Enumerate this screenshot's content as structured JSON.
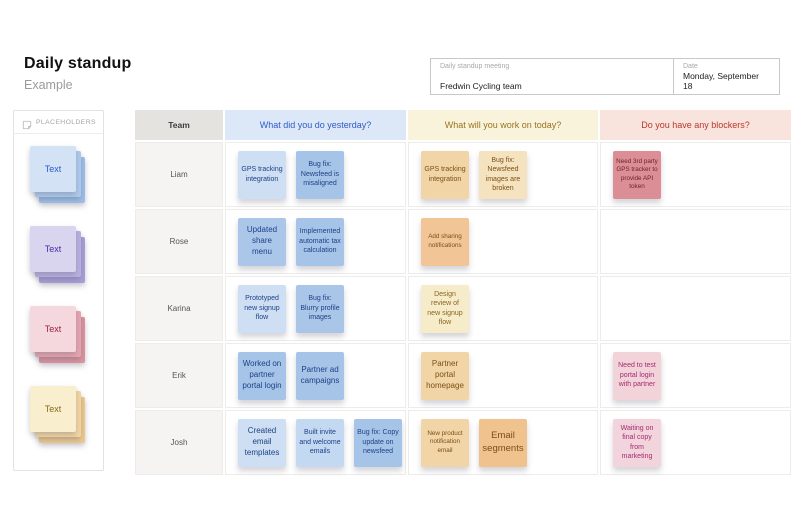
{
  "page": {
    "title": "Daily standup",
    "subtitle": "Example"
  },
  "meeting_form": {
    "name_label": "Daily standup meeting",
    "name_value": "Fredwin Cycling team",
    "date_label": "Date",
    "date_value": "Monday, September 18"
  },
  "sidebar": {
    "title": "PLACEHOLDERS",
    "icon": "sticky-note-icon",
    "stacks": [
      {
        "label": "Text",
        "color": "blue",
        "front": "#d4e2f6",
        "mid": "#aecbee",
        "back": "#9dc0ea",
        "fg": "#2d5bc7"
      },
      {
        "label": "Text",
        "color": "purple",
        "front": "#d9d5ef",
        "mid": "#b9b0e0",
        "back": "#a99ed9",
        "fg": "#5128a8"
      },
      {
        "label": "Text",
        "color": "pink",
        "front": "#f5d8dd",
        "mid": "#e5a6af",
        "back": "#dd939f",
        "fg": "#a01f48"
      },
      {
        "label": "Text",
        "color": "yellow",
        "front": "#f9efce",
        "mid": "#f3d7a3",
        "back": "#efca8c",
        "fg": "#8a6a1c"
      }
    ]
  },
  "table": {
    "columns": [
      {
        "key": "team",
        "label": "Team",
        "bg": "#e4e3e0",
        "fg": "#3c3c3c"
      },
      {
        "key": "yesterday",
        "label": "What did you do yesterday?",
        "bg": "#dce8f7",
        "fg": "#2f5bc7"
      },
      {
        "key": "today",
        "label": "What will you work on today?",
        "bg": "#faf3dc",
        "fg": "#97741f"
      },
      {
        "key": "blockers",
        "label": "Do you have any blockers?",
        "bg": "#f8e3dd",
        "fg": "#b8392c"
      }
    ],
    "rows": [
      {
        "name": "Liam",
        "yesterday": [
          {
            "text": "GPS tracking integration",
            "bg": "#cfdff3",
            "fg": "#1d4186",
            "size": "s"
          },
          {
            "text": "Bug fix: Newsfeed is misaligned",
            "bg": "#a6c4e8",
            "fg": "#1d4186",
            "size": "s"
          }
        ],
        "today": [
          {
            "text": "GPS tracking integration",
            "bg": "#f1d5a6",
            "fg": "#7d4f16",
            "size": "s"
          },
          {
            "text": "Bug fix: Newsfeed images are broken",
            "bg": "#f5e3c0",
            "fg": "#7d4f16",
            "size": "s"
          }
        ],
        "blockers": [
          {
            "text": "Need 3rd party GPS tracker to provide API token",
            "bg": "#db8e96",
            "fg": "#6d1f28",
            "size": "xs"
          }
        ]
      },
      {
        "name": "Rose",
        "yesterday": [
          {
            "text": "Updated share menu",
            "bg": "#aac7ea",
            "fg": "#1d4186",
            "size": "m"
          },
          {
            "text": "Implemented automatic tax calculation",
            "bg": "#a6c4e8",
            "fg": "#1d4186",
            "size": "s"
          }
        ],
        "today": [
          {
            "text": "Add sharing notifications",
            "bg": "#f2c597",
            "fg": "#7d4f16",
            "size": "xs"
          }
        ],
        "blockers": []
      },
      {
        "name": "Karina",
        "yesterday": [
          {
            "text": "Prototyped new signup flow",
            "bg": "#cfdff3",
            "fg": "#1d4186",
            "size": "s"
          },
          {
            "text": "Bug fix: Blurry profile images",
            "bg": "#a9c6e9",
            "fg": "#1d4186",
            "size": "s"
          }
        ],
        "today": [
          {
            "text": "Design review of new signup flow",
            "bg": "#f7ecca",
            "fg": "#8a6420",
            "size": "s"
          }
        ],
        "blockers": []
      },
      {
        "name": "Erik",
        "yesterday": [
          {
            "text": "Worked on partner portal login",
            "bg": "#a6c4e8",
            "fg": "#1d4186",
            "size": "m"
          },
          {
            "text": "Partner ad campaigns",
            "bg": "#a6c4e8",
            "fg": "#1d4186",
            "size": "m"
          }
        ],
        "today": [
          {
            "text": "Partner portal homepage",
            "bg": "#f1d5a6",
            "fg": "#7d4f16",
            "size": "m"
          }
        ],
        "blockers": [
          {
            "text": "Need to test portal login with partner",
            "bg": "#f2d3da",
            "fg": "#a62a70",
            "size": "s"
          }
        ]
      },
      {
        "name": "Josh",
        "yesterday": [
          {
            "text": "Created email templates",
            "bg": "#cfdff3",
            "fg": "#1d4186",
            "size": "m"
          },
          {
            "text": "Built invite and welcome emails",
            "bg": "#c3d8f1",
            "fg": "#1d4186",
            "size": "s"
          },
          {
            "text": "Bug fix: Copy update on newsfeed",
            "bg": "#a6c4e8",
            "fg": "#1d4186",
            "size": "s"
          }
        ],
        "today": [
          {
            "text": "New product notification email",
            "bg": "#f1d5a6",
            "fg": "#7d4f16",
            "size": "xs"
          },
          {
            "text": "Email segments",
            "bg": "#efc28e",
            "fg": "#7d4f16",
            "size": "l"
          }
        ],
        "blockers": [
          {
            "text": "Waiting on final copy from marketing",
            "bg": "#f2d4dc",
            "fg": "#a62a70",
            "size": "s"
          }
        ]
      }
    ]
  }
}
